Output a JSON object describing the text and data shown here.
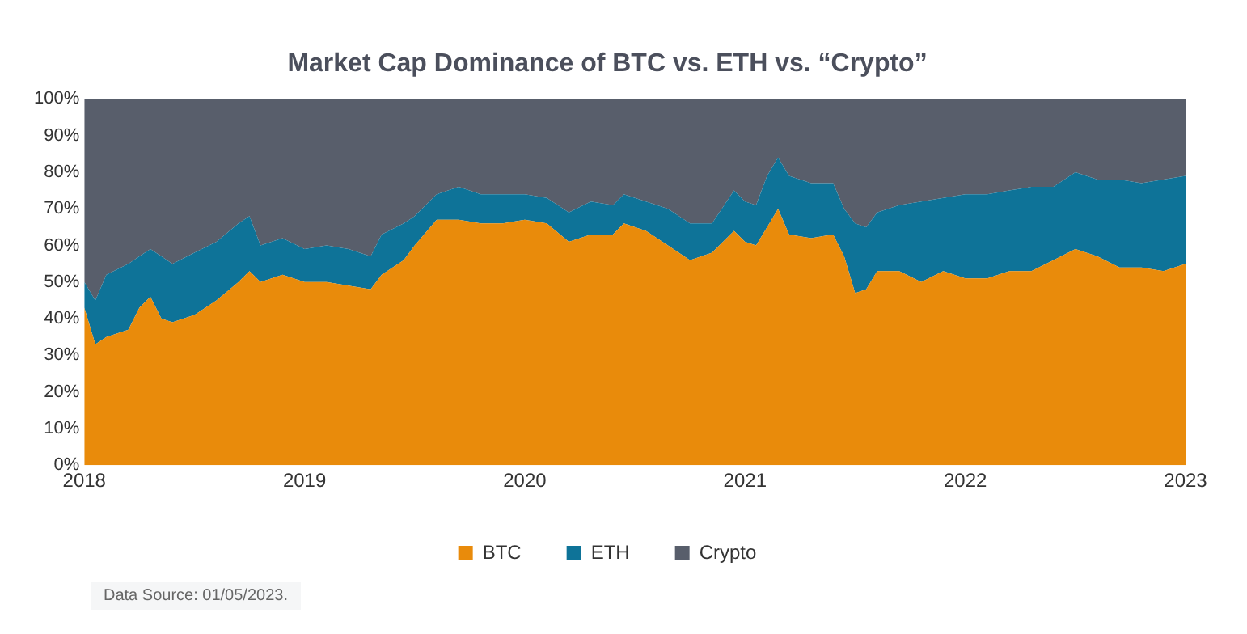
{
  "chart_data": {
    "type": "area",
    "title": "Market Cap Dominance of BTC vs. ETH vs. “Crypto”",
    "stacked": true,
    "x": [
      2018,
      2018.05,
      2018.1,
      2018.2,
      2018.25,
      2018.3,
      2018.35,
      2018.4,
      2018.5,
      2018.6,
      2018.7,
      2018.75,
      2018.8,
      2018.9,
      2019,
      2019.1,
      2019.2,
      2019.3,
      2019.35,
      2019.45,
      2019.5,
      2019.6,
      2019.7,
      2019.8,
      2019.9,
      2020,
      2020.1,
      2020.2,
      2020.3,
      2020.4,
      2020.45,
      2020.55,
      2020.65,
      2020.75,
      2020.85,
      2020.95,
      2021,
      2021.05,
      2021.1,
      2021.15,
      2021.2,
      2021.3,
      2021.4,
      2021.45,
      2021.5,
      2021.55,
      2021.6,
      2021.7,
      2021.8,
      2021.9,
      2022,
      2022.1,
      2022.2,
      2022.3,
      2022.4,
      2022.5,
      2022.6,
      2022.7,
      2022.8,
      2022.9,
      2023
    ],
    "series": [
      {
        "name": "BTC",
        "color": "#e98b0b",
        "values": [
          43,
          33,
          35,
          37,
          43,
          46,
          40,
          39,
          41,
          45,
          50,
          53,
          50,
          52,
          50,
          50,
          49,
          48,
          52,
          56,
          60,
          67,
          67,
          66,
          66,
          67,
          66,
          61,
          63,
          63,
          66,
          64,
          60,
          56,
          58,
          64,
          61,
          60,
          65,
          70,
          63,
          62,
          63,
          57,
          47,
          48,
          53,
          53,
          50,
          53,
          51,
          51,
          53,
          53,
          56,
          59,
          57,
          54,
          54,
          53,
          55
        ]
      },
      {
        "name": "ETH",
        "color": "#0e7398",
        "values": [
          7,
          12,
          17,
          18,
          14,
          13,
          17,
          16,
          17,
          16,
          16,
          15,
          10,
          10,
          9,
          10,
          10,
          9,
          11,
          10,
          8,
          7,
          9,
          8,
          8,
          7,
          7,
          8,
          9,
          8,
          8,
          8,
          10,
          10,
          8,
          11,
          11,
          11,
          14,
          14,
          16,
          15,
          14,
          13,
          19,
          17,
          16,
          18,
          22,
          20,
          23,
          23,
          22,
          23,
          20,
          21,
          21,
          24,
          23,
          25,
          24
        ]
      },
      {
        "name": "Crypto",
        "color": "#585e6b",
        "values": [
          50,
          55,
          48,
          45,
          43,
          41,
          43,
          45,
          42,
          39,
          34,
          32,
          40,
          38,
          41,
          40,
          41,
          43,
          37,
          34,
          32,
          26,
          24,
          26,
          26,
          26,
          27,
          31,
          28,
          29,
          26,
          28,
          30,
          34,
          34,
          25,
          28,
          29,
          21,
          16,
          21,
          23,
          23,
          30,
          34,
          35,
          31,
          29,
          28,
          27,
          26,
          26,
          25,
          24,
          24,
          20,
          22,
          22,
          23,
          22,
          21
        ]
      }
    ],
    "xlim": [
      2018,
      2023
    ],
    "xticks": [
      2018,
      2019,
      2020,
      2021,
      2022,
      2023
    ],
    "ylim": [
      0,
      100
    ],
    "yticks": [
      {
        "value": 0,
        "label": "0%"
      },
      {
        "value": 10,
        "label": "10%"
      },
      {
        "value": 20,
        "label": "20%"
      },
      {
        "value": 30,
        "label": "30%"
      },
      {
        "value": 40,
        "label": "40%"
      },
      {
        "value": 50,
        "label": "50%"
      },
      {
        "value": 60,
        "label": "60%"
      },
      {
        "value": 70,
        "label": "70%"
      },
      {
        "value": 80,
        "label": "80%"
      },
      {
        "value": 90,
        "label": "90%"
      },
      {
        "value": 100,
        "label": "100%"
      }
    ],
    "grid": false,
    "legend": "bottom",
    "annotations": [
      "Data Source: 01/05/2023."
    ]
  }
}
